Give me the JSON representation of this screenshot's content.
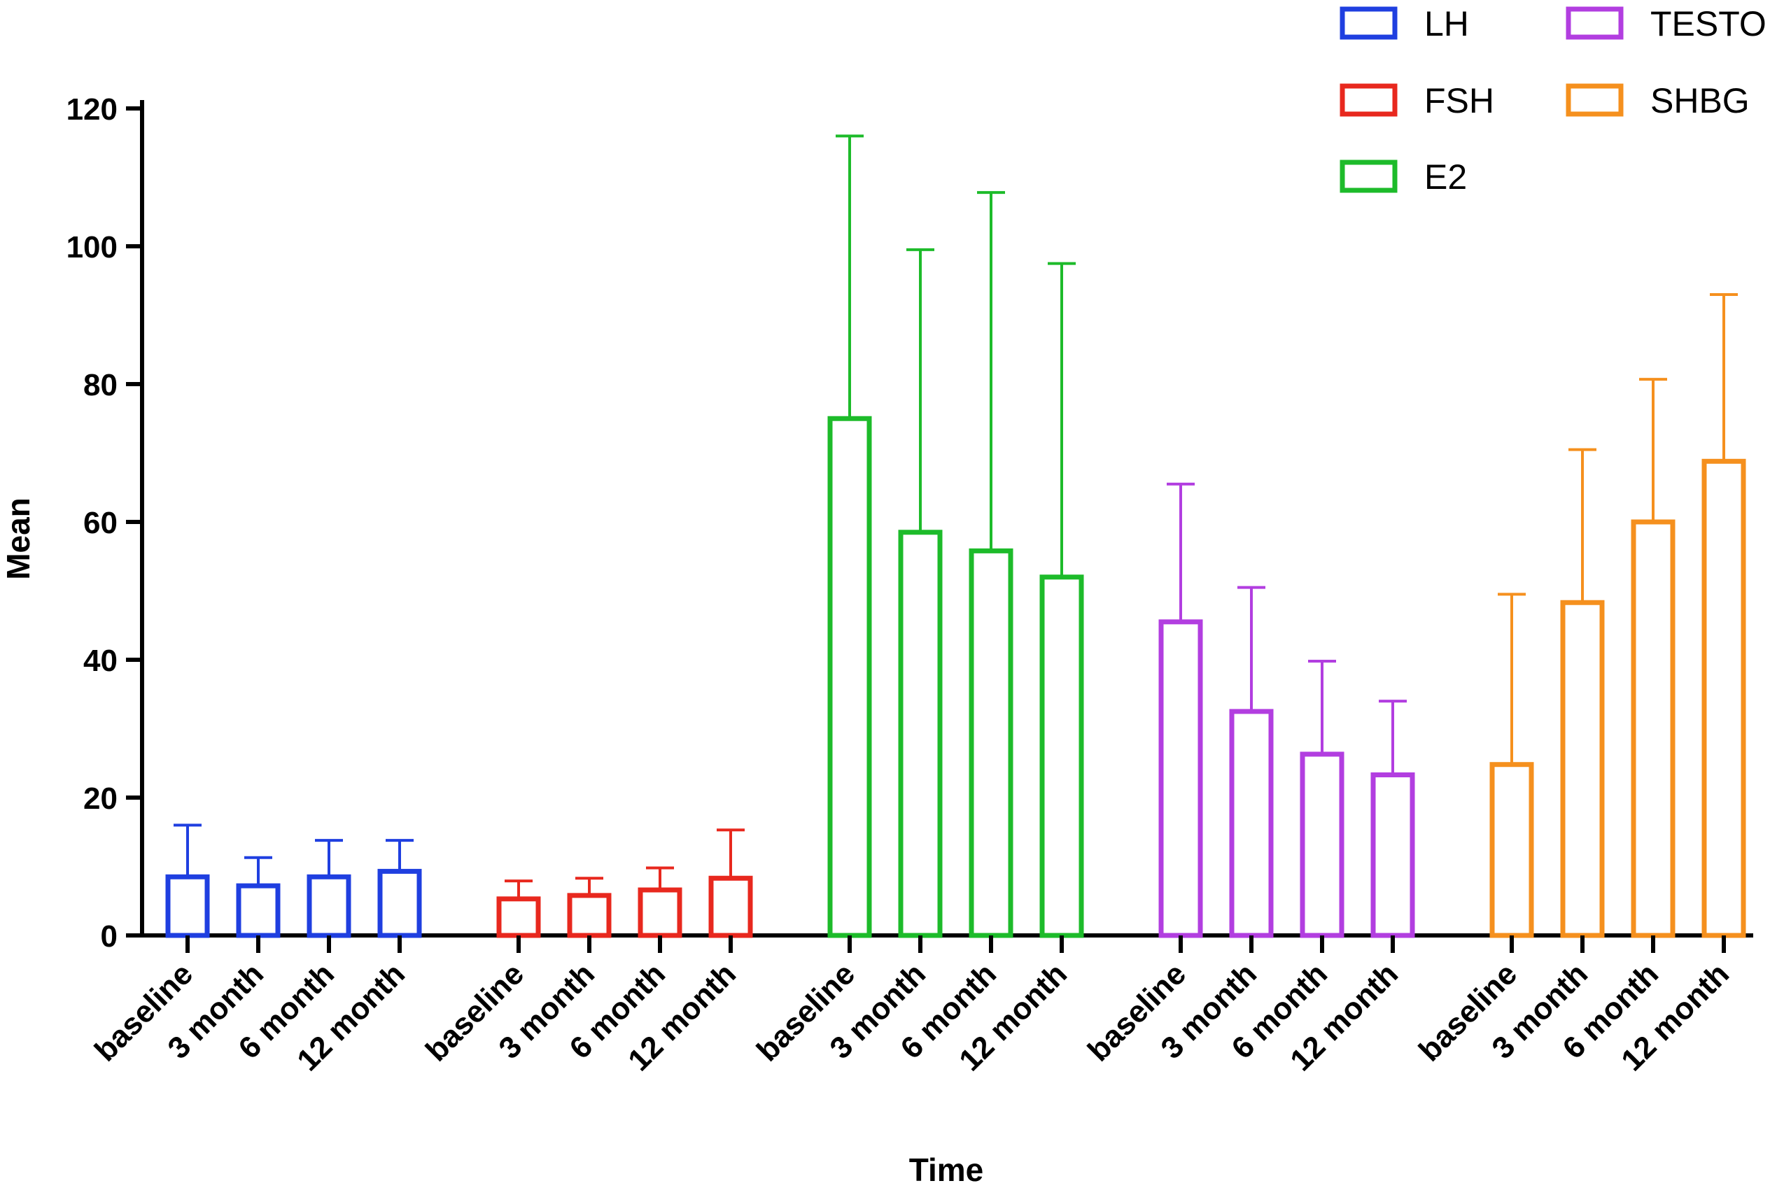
{
  "chart_data": {
    "type": "bar",
    "title": "",
    "xlabel": "Time",
    "ylabel": "Mean",
    "ylim": [
      0,
      120
    ],
    "yticks": [
      0,
      20,
      40,
      60,
      80,
      100,
      120
    ],
    "categories": [
      "baseline",
      "3 month",
      "6 month",
      "12 month"
    ],
    "series": [
      {
        "name": "LH",
        "color": "#1f3fe0",
        "values": [
          8.5,
          7.2,
          8.5,
          9.3
        ],
        "errors": [
          7.5,
          4.1,
          5.3,
          4.5
        ]
      },
      {
        "name": "FSH",
        "color": "#e8281e",
        "values": [
          5.3,
          5.8,
          6.6,
          8.3
        ],
        "errors": [
          2.6,
          2.5,
          3.2,
          7.0
        ]
      },
      {
        "name": "E2",
        "color": "#1dbb2a",
        "values": [
          75,
          58.5,
          55.8,
          52
        ],
        "errors": [
          41,
          41,
          52,
          45.5
        ]
      },
      {
        "name": "TESTO",
        "color": "#b23ee0",
        "values": [
          45.5,
          32.5,
          26.3,
          23.3
        ],
        "errors": [
          20,
          18,
          13.5,
          10.7
        ]
      },
      {
        "name": "SHBG",
        "color": "#f5901e",
        "values": [
          24.8,
          48.3,
          60,
          68.8
        ],
        "errors": [
          24.7,
          22.2,
          20.7,
          24.2
        ]
      }
    ],
    "legend_position": "top-right"
  }
}
